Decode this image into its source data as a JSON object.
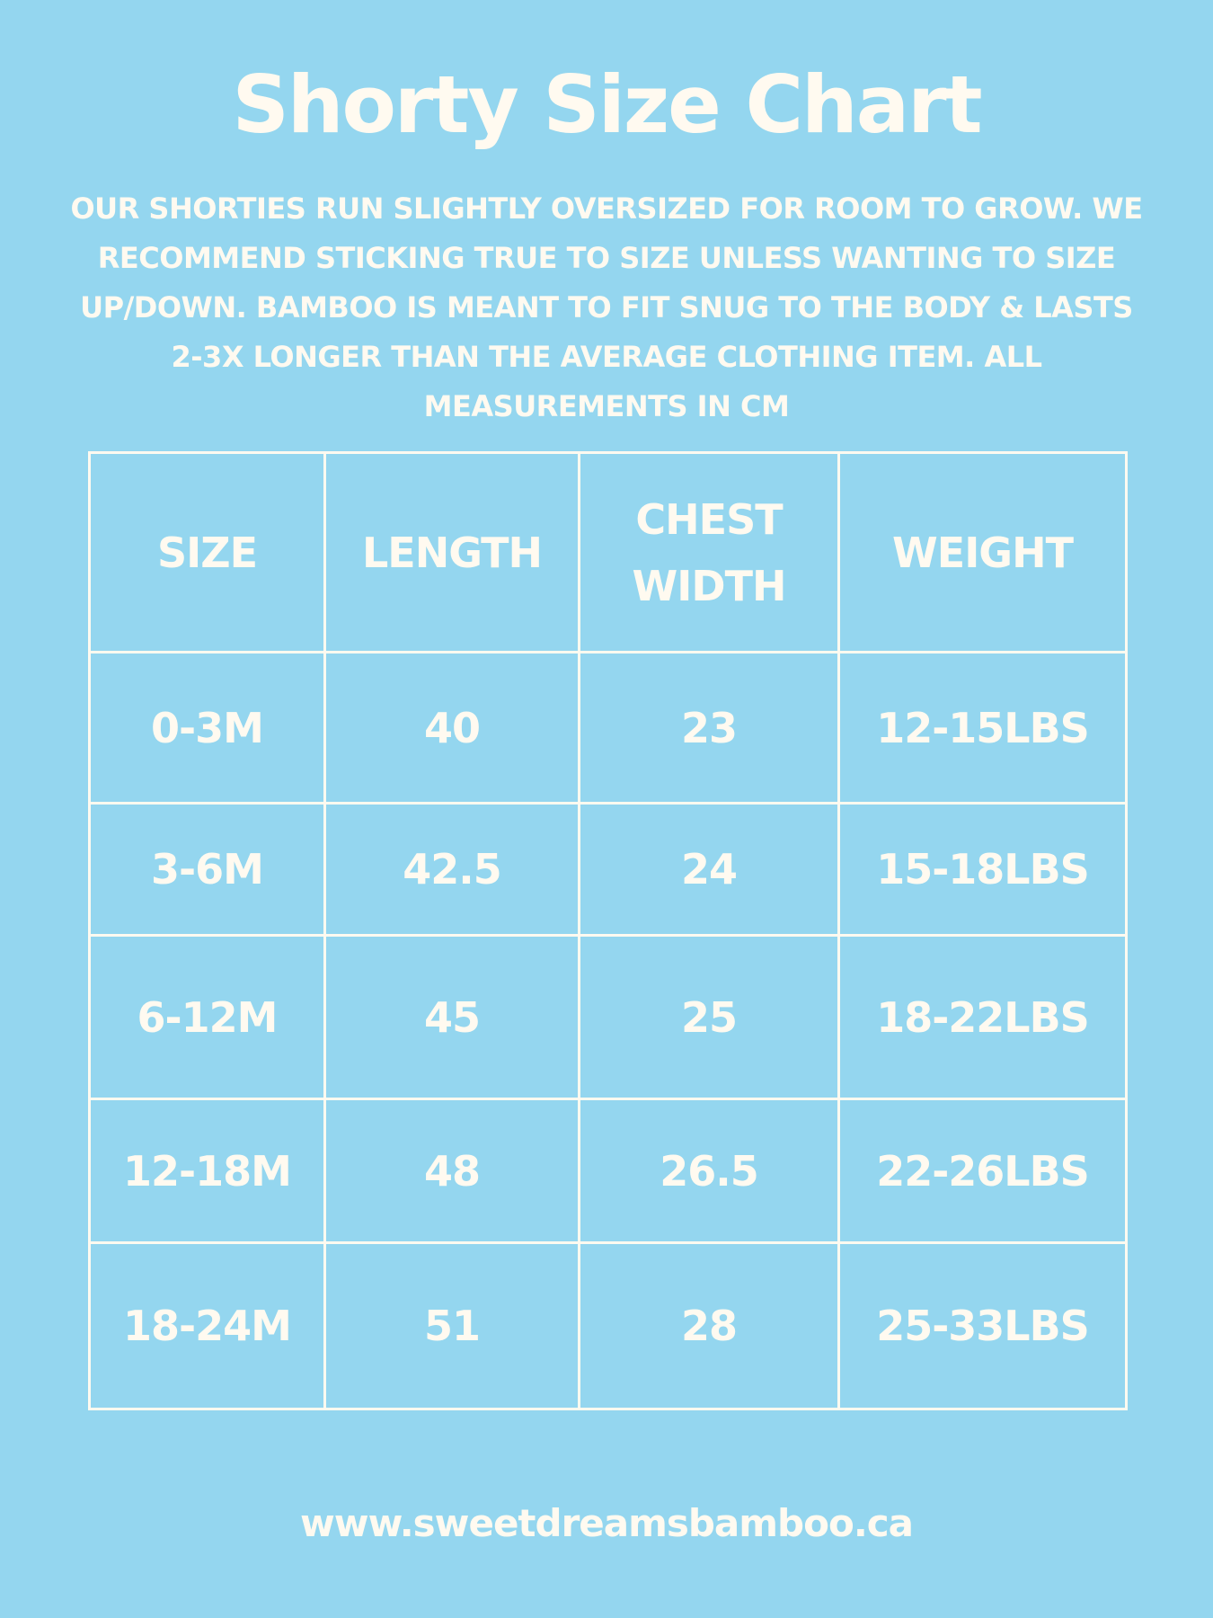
{
  "title": "Shorty Size Chart",
  "intro": "OUR SHORTIES RUN SLIGHTLY OVERSIZED FOR ROOM TO GROW. WE RECOMMEND STICKING TRUE TO SIZE UNLESS WANTING TO SIZE UP/DOWN.  BAMBOO IS MEANT TO FIT SNUG TO THE BODY & LASTS 2-3X LONGER THAN THE AVERAGE CLOTHING ITEM. ALL MEASUREMENTS IN CM",
  "table": {
    "headers": {
      "size": "SIZE",
      "length": "LENGTH",
      "chest_line1": "CHEST",
      "chest_line2": "WIDTH",
      "weight": "WEIGHT"
    },
    "rows": [
      {
        "size": "0-3M",
        "length": "40",
        "chest": "23",
        "weight": "12-15LBS"
      },
      {
        "size": "3-6M",
        "length": "42.5",
        "chest": "24",
        "weight": "15-18LBS"
      },
      {
        "size": "6-12M",
        "length": "45",
        "chest": "25",
        "weight": "18-22LBS"
      },
      {
        "size": "12-18M",
        "length": "48",
        "chest": "26.5",
        "weight": "22-26LBS"
      },
      {
        "size": "18-24M",
        "length": "51",
        "chest": "28",
        "weight": "25-33LBS"
      }
    ]
  },
  "footer": "www.sweetdreamsbamboo.ca",
  "colors": {
    "background": "#94d6ef",
    "text": "#fffaf0"
  }
}
